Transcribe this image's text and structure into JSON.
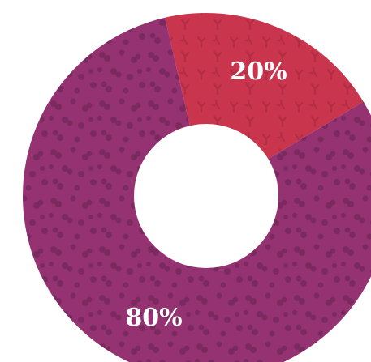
{
  "chart_data": {
    "type": "pie",
    "donut": true,
    "slices": [
      {
        "value": 20,
        "label": "20%",
        "color": "#c9354d",
        "pattern": "y-shapes"
      },
      {
        "value": 80,
        "label": "80%",
        "color": "#943272",
        "pattern": "blobs"
      }
    ],
    "start_angle_deg": -13,
    "direction": "clockwise",
    "hole_color": "#ffffff",
    "title": "",
    "legend": "none"
  }
}
